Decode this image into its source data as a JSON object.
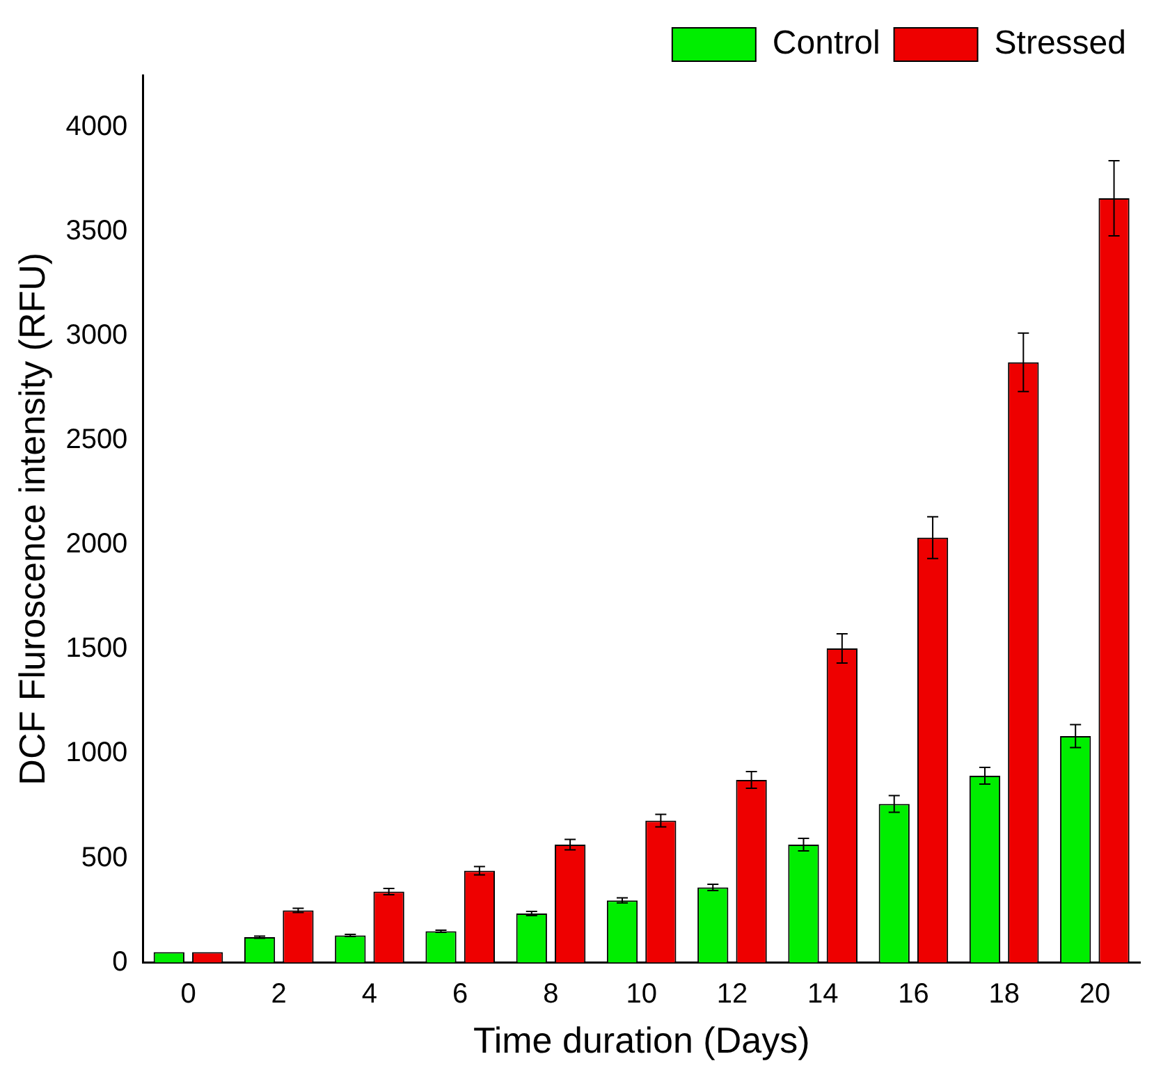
{
  "chart_data": {
    "type": "bar",
    "xlabel": "Time duration (Days)",
    "ylabel": "DCF Fluroscence intensity (RFU)",
    "categories": [
      "0",
      "2",
      "4",
      "6",
      "8",
      "10",
      "12",
      "14",
      "16",
      "18",
      "20"
    ],
    "series": [
      {
        "name": "Control",
        "color": "#00ee00",
        "values": [
          50,
          122,
          130,
          150,
          235,
          298,
          360,
          565,
          760,
          895,
          1085
        ],
        "errors": [
          null,
          5,
          5,
          5,
          10,
          12,
          15,
          30,
          40,
          40,
          55
        ]
      },
      {
        "name": "Stressed",
        "color": "#ee0000",
        "values": [
          50,
          250,
          340,
          440,
          565,
          680,
          875,
          1505,
          2035,
          2875,
          3660
        ],
        "errors": [
          null,
          10,
          15,
          20,
          25,
          30,
          40,
          70,
          100,
          140,
          180
        ]
      }
    ],
    "ylim": [
      0,
      4250
    ],
    "yticks": [
      0,
      500,
      1000,
      1500,
      2000,
      2500,
      3000,
      3500,
      4000
    ],
    "grid": false,
    "legend": "top right"
  }
}
